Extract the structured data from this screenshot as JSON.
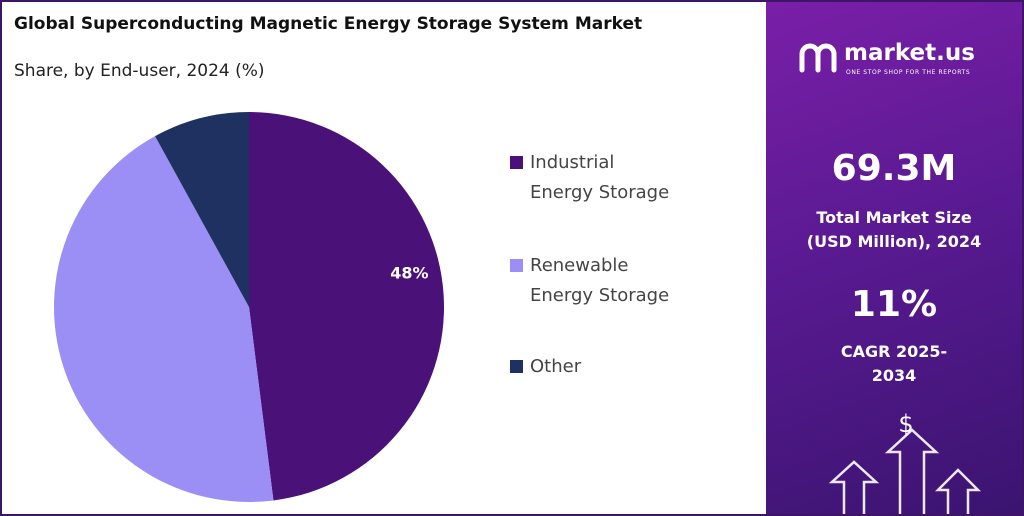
{
  "chart_data": {
    "type": "pie",
    "title": "Global Superconducting Magnetic Energy Storage System Market",
    "subtitle": "Share, by End-user, 2024 (%)",
    "categories": [
      "Industrial Energy Storage",
      "Renewable Energy Storage",
      "Other"
    ],
    "values": [
      48,
      44,
      8
    ],
    "value_labels": [
      "48%",
      null,
      null
    ],
    "colors": [
      "#4a1278",
      "#9b8ff5",
      "#1e3160"
    ]
  },
  "panel": {
    "brand": "market.us",
    "tagline": "ONE STOP SHOP FOR THE REPORTS",
    "market_size": "69.3M",
    "market_size_label": "Total Market Size (USD Million), 2024",
    "cagr": "11%",
    "cagr_label": "CAGR 2025-2034",
    "icon": "$"
  }
}
